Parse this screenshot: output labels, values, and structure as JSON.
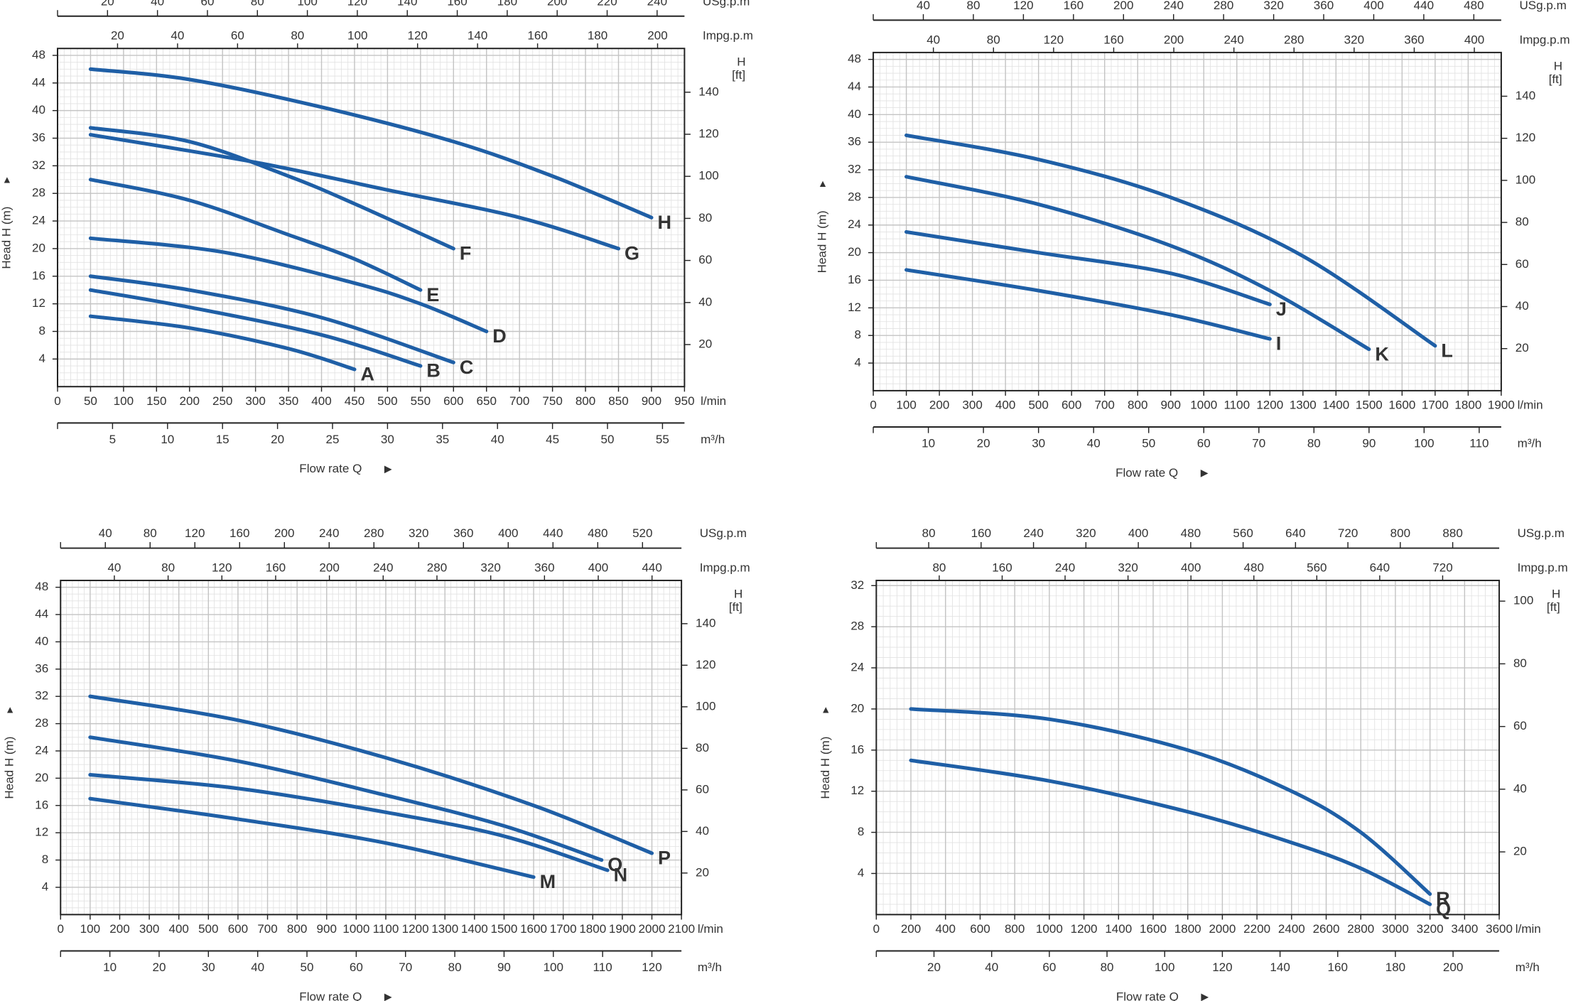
{
  "chart_data": [
    {
      "type": "line",
      "ylabel": "Head H (m)",
      "flow_label": "Flow rate Q",
      "xlabel": "l/min",
      "xlim": [
        0,
        950
      ],
      "xticks": [
        0,
        50,
        100,
        150,
        200,
        250,
        300,
        350,
        400,
        450,
        500,
        550,
        600,
        650,
        700,
        750,
        800,
        850,
        900,
        950
      ],
      "x2label": "m³/h",
      "x2lim": [
        0,
        57
      ],
      "x2ticks": [
        5,
        10,
        15,
        20,
        25,
        30,
        35,
        40,
        45,
        50,
        55
      ],
      "x3label": "USg.p.m",
      "x3lim": [
        0,
        250.96
      ],
      "x3ticks": [
        20,
        40,
        60,
        80,
        100,
        120,
        140,
        160,
        180,
        200,
        220,
        240
      ],
      "x4label": "Impg.p.m",
      "x4lim": [
        0,
        208.97
      ],
      "x4ticks": [
        20,
        40,
        60,
        80,
        100,
        120,
        140,
        160,
        180,
        200
      ],
      "ylim": [
        0,
        49
      ],
      "yticks": [
        4,
        8,
        12,
        16,
        20,
        24,
        28,
        32,
        36,
        40,
        44,
        48
      ],
      "y2label": "H",
      "y2unit": "[ft]",
      "y2lim": [
        0,
        160.8
      ],
      "y2ticks": [
        20,
        40,
        60,
        80,
        100,
        120,
        140
      ],
      "grid": true,
      "series": [
        {
          "name": "H",
          "color": "#1f5fa6",
          "x": [
            50,
            200,
            400,
            600,
            750,
            900
          ],
          "values": [
            46,
            44.5,
            40.5,
            35.5,
            30.5,
            24.5
          ]
        },
        {
          "name": "G",
          "color": "#1f5fa6",
          "x": [
            50,
            300,
            500,
            700,
            850
          ],
          "values": [
            36.5,
            32.5,
            28.5,
            24.5,
            20
          ]
        },
        {
          "name": "F",
          "color": "#1f5fa6",
          "x": [
            50,
            200,
            350,
            450,
            600
          ],
          "values": [
            37.5,
            35.5,
            30.5,
            26.5,
            20
          ]
        },
        {
          "name": "E",
          "color": "#1f5fa6",
          "x": [
            50,
            200,
            350,
            450,
            550
          ],
          "values": [
            30,
            27,
            22,
            18.5,
            14
          ]
        },
        {
          "name": "D",
          "color": "#1f5fa6",
          "x": [
            50,
            250,
            450,
            550,
            650
          ],
          "values": [
            21.5,
            19.5,
            15,
            12,
            8
          ]
        },
        {
          "name": "C",
          "color": "#1f5fa6",
          "x": [
            50,
            200,
            400,
            600
          ],
          "values": [
            16,
            14,
            10,
            3.5
          ]
        },
        {
          "name": "B",
          "color": "#1f5fa6",
          "x": [
            50,
            200,
            400,
            550
          ],
          "values": [
            14,
            11.5,
            7.5,
            3
          ]
        },
        {
          "name": "A",
          "color": "#1f5fa6",
          "x": [
            50,
            200,
            350,
            450
          ],
          "values": [
            10.2,
            8.5,
            5.5,
            2.5
          ]
        }
      ]
    },
    {
      "type": "line",
      "ylabel": "Head H (m)",
      "flow_label": "Flow rate Q",
      "xlabel": "l/min",
      "xlim": [
        0,
        1900
      ],
      "xticks": [
        0,
        100,
        200,
        300,
        400,
        500,
        600,
        700,
        800,
        900,
        1000,
        1100,
        1200,
        1300,
        1400,
        1500,
        1600,
        1700,
        1800,
        1900
      ],
      "x2label": "m³/h",
      "x2lim": [
        0,
        114
      ],
      "x2ticks": [
        10,
        20,
        30,
        40,
        50,
        60,
        70,
        80,
        90,
        100,
        110
      ],
      "x3label": "USg.p.m",
      "x3lim": [
        0,
        501.9
      ],
      "x3ticks": [
        40,
        80,
        120,
        160,
        200,
        240,
        280,
        320,
        360,
        400,
        440,
        480
      ],
      "x4label": "Impg.p.m",
      "x4lim": [
        0,
        417.9
      ],
      "x4ticks": [
        40,
        80,
        120,
        160,
        200,
        240,
        280,
        320,
        360,
        400
      ],
      "ylim": [
        0,
        49
      ],
      "yticks": [
        4,
        8,
        12,
        16,
        20,
        24,
        28,
        32,
        36,
        40,
        44,
        48
      ],
      "y2label": "H",
      "y2unit": "[ft]",
      "y2lim": [
        0,
        160.8
      ],
      "y2ticks": [
        20,
        40,
        60,
        80,
        100,
        120,
        140
      ],
      "grid": true,
      "series": [
        {
          "name": "L",
          "color": "#1f5fa6",
          "x": [
            100,
            500,
            900,
            1300,
            1700
          ],
          "values": [
            37,
            33.5,
            28,
            19.5,
            6.5
          ]
        },
        {
          "name": "K",
          "color": "#1f5fa6",
          "x": [
            100,
            500,
            900,
            1200,
            1500
          ],
          "values": [
            31,
            27,
            21,
            14.5,
            6
          ]
        },
        {
          "name": "J",
          "color": "#1f5fa6",
          "x": [
            100,
            500,
            900,
            1200
          ],
          "values": [
            23,
            20,
            17,
            12.5
          ]
        },
        {
          "name": "I",
          "color": "#1f5fa6",
          "x": [
            100,
            500,
            900,
            1200
          ],
          "values": [
            17.5,
            14.5,
            11,
            7.5
          ]
        }
      ]
    },
    {
      "type": "line",
      "ylabel": "Head H (m)",
      "flow_label": "Flow rate Q",
      "xlabel": "l/min",
      "xlim": [
        0,
        2100
      ],
      "xticks": [
        0,
        100,
        200,
        300,
        400,
        500,
        600,
        700,
        800,
        900,
        1000,
        1100,
        1200,
        1300,
        1400,
        1500,
        1600,
        1700,
        1800,
        1900,
        2000,
        2100
      ],
      "x2label": "m³/h",
      "x2lim": [
        0,
        126
      ],
      "x2ticks": [
        10,
        20,
        30,
        40,
        50,
        60,
        70,
        80,
        90,
        100,
        110,
        120
      ],
      "x3label": "USg.p.m",
      "x3lim": [
        0,
        554.8
      ],
      "x3ticks": [
        40,
        80,
        120,
        160,
        200,
        240,
        280,
        320,
        360,
        400,
        440,
        480,
        520
      ],
      "x4label": "Impg.p.m",
      "x4lim": [
        0,
        461.9
      ],
      "x4ticks": [
        40,
        80,
        120,
        160,
        200,
        240,
        280,
        320,
        360,
        400,
        440
      ],
      "ylim": [
        0,
        49
      ],
      "yticks": [
        4,
        8,
        12,
        16,
        20,
        24,
        28,
        32,
        36,
        40,
        44,
        48
      ],
      "y2label": "H",
      "y2unit": "[ft]",
      "y2lim": [
        0,
        160.8
      ],
      "y2ticks": [
        20,
        40,
        60,
        80,
        100,
        120,
        140
      ],
      "grid": true,
      "series": [
        {
          "name": "P",
          "color": "#1f5fa6",
          "x": [
            100,
            600,
            1100,
            1600,
            2000
          ],
          "values": [
            32,
            28.5,
            23,
            16,
            9
          ]
        },
        {
          "name": "O",
          "color": "#1f5fa6",
          "x": [
            100,
            600,
            1100,
            1500,
            1830
          ],
          "values": [
            26,
            22.5,
            17.5,
            13,
            8
          ]
        },
        {
          "name": "N",
          "color": "#1f5fa6",
          "x": [
            100,
            600,
            1100,
            1500,
            1850
          ],
          "values": [
            20.5,
            18.5,
            15,
            11.5,
            6.5
          ]
        },
        {
          "name": "M",
          "color": "#1f5fa6",
          "x": [
            100,
            600,
            1100,
            1600
          ],
          "values": [
            17,
            14,
            10.5,
            5.5
          ]
        }
      ]
    },
    {
      "type": "line",
      "ylabel": "Head H (m)",
      "flow_label": "Flow rate Q",
      "xlabel": "l/min",
      "xlim": [
        0,
        3600
      ],
      "xticks": [
        0,
        200,
        400,
        600,
        800,
        1000,
        1200,
        1400,
        1600,
        1800,
        2000,
        2200,
        2400,
        2600,
        2800,
        3000,
        3200,
        3400,
        3600
      ],
      "x2label": "m³/h",
      "x2lim": [
        0,
        216
      ],
      "x2ticks": [
        20,
        40,
        60,
        80,
        100,
        120,
        140,
        160,
        180,
        200
      ],
      "x3label": "USg.p.m",
      "x3lim": [
        0,
        951
      ],
      "x3ticks": [
        80,
        160,
        240,
        320,
        400,
        480,
        560,
        640,
        720,
        800,
        880
      ],
      "x4label": "Impg.p.m",
      "x4lim": [
        0,
        791.9
      ],
      "x4ticks": [
        80,
        160,
        240,
        320,
        400,
        480,
        560,
        640,
        720
      ],
      "ylim": [
        0,
        32.5
      ],
      "yticks": [
        4,
        8,
        12,
        16,
        20,
        24,
        28,
        32
      ],
      "y2label": "H",
      "y2unit": "[ft]",
      "y2lim": [
        0,
        106.6
      ],
      "y2ticks": [
        20,
        40,
        60,
        80,
        100
      ],
      "grid": true,
      "series": [
        {
          "name": "R",
          "color": "#1f5fa6",
          "x": [
            200,
            1000,
            1800,
            2400,
            2800,
            3200
          ],
          "values": [
            20,
            19,
            16,
            12,
            8,
            2
          ]
        },
        {
          "name": "Q",
          "color": "#1f5fa6",
          "x": [
            200,
            1000,
            1800,
            2400,
            2800,
            3200
          ],
          "values": [
            15,
            13,
            10,
            7,
            4.5,
            1
          ]
        }
      ]
    }
  ]
}
